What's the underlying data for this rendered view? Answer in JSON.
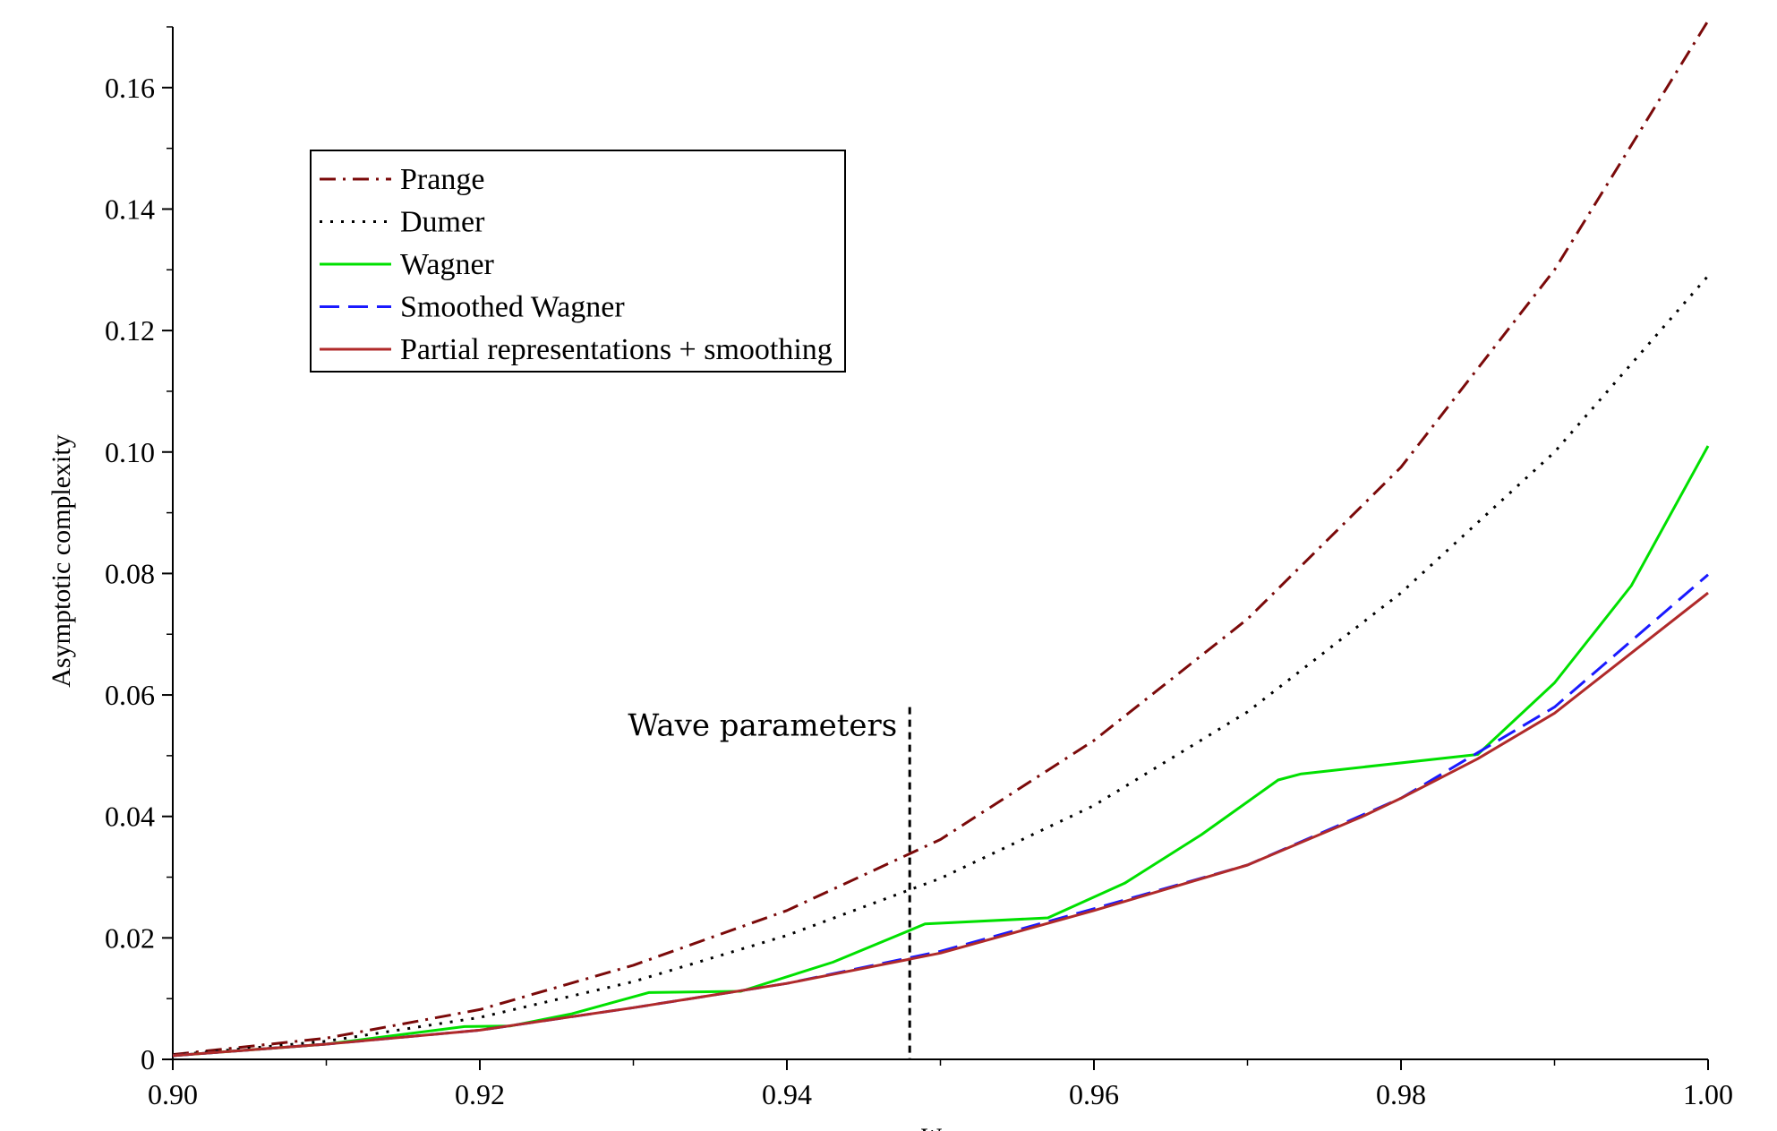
{
  "chart_data": {
    "type": "line",
    "title": "",
    "xlabel": "w",
    "ylabel": "Asymptotic complexity",
    "xlim": [
      0.9,
      1.0
    ],
    "ylim": [
      0,
      0.17
    ],
    "x_ticks": [
      0.9,
      0.92,
      0.94,
      0.96,
      0.98,
      1.0
    ],
    "x_tick_labels": [
      "0.90",
      "0.92",
      "0.94",
      "0.96",
      "0.98",
      "1.00"
    ],
    "y_ticks": [
      0,
      0.02,
      0.04,
      0.06,
      0.08,
      0.1,
      0.12,
      0.14,
      0.16
    ],
    "y_tick_labels": [
      "0",
      "0.02",
      "0.04",
      "0.06",
      "0.08",
      "0.10",
      "0.12",
      "0.14",
      "0.16"
    ],
    "grid": false,
    "legend_position": "top-left",
    "annotations": [
      {
        "text": "Wave parameters",
        "x": 0.948,
        "y_top": 0.058,
        "style": "vertical-dashed-line"
      }
    ],
    "series": [
      {
        "name": "Prange",
        "color": "#7b0a0a",
        "dash": "dashdot",
        "x": [
          0.9,
          0.91,
          0.92,
          0.93,
          0.94,
          0.95,
          0.96,
          0.97,
          0.98,
          0.99,
          1.0
        ],
        "y": [
          0.0008,
          0.0035,
          0.0082,
          0.0155,
          0.0245,
          0.0362,
          0.0525,
          0.0725,
          0.0975,
          0.13,
          0.171
        ]
      },
      {
        "name": "Dumer",
        "color": "#000000",
        "dash": "dotted",
        "x": [
          0.9,
          0.91,
          0.92,
          0.93,
          0.94,
          0.95,
          0.96,
          0.97,
          0.98,
          0.99,
          1.0
        ],
        "y": [
          0.0007,
          0.003,
          0.0069,
          0.0128,
          0.0204,
          0.0298,
          0.0418,
          0.0572,
          0.0768,
          0.1,
          0.129
        ]
      },
      {
        "name": "Wagner",
        "color": "#00e000",
        "dash": "solid",
        "x": [
          0.9,
          0.91,
          0.919,
          0.922,
          0.926,
          0.931,
          0.937,
          0.943,
          0.949,
          0.957,
          0.962,
          0.967,
          0.972,
          0.9735,
          0.985,
          0.99,
          0.995,
          1.0
        ],
        "y": [
          0.0006,
          0.0025,
          0.0054,
          0.0055,
          0.0075,
          0.011,
          0.0112,
          0.016,
          0.0223,
          0.0233,
          0.029,
          0.037,
          0.046,
          0.047,
          0.0502,
          0.062,
          0.078,
          0.101
        ]
      },
      {
        "name": "Smoothed Wagner",
        "color": "#1a1aff",
        "dash": "dashed",
        "x": [
          0.9,
          0.91,
          0.92,
          0.93,
          0.94,
          0.95,
          0.96,
          0.97,
          0.98,
          0.99,
          1.0
        ],
        "y": [
          0.0006,
          0.0025,
          0.0048,
          0.0085,
          0.0125,
          0.0178,
          0.0248,
          0.032,
          0.043,
          0.058,
          0.0798
        ]
      },
      {
        "name": "Partial representations + smoothing",
        "color": "#b02a2a",
        "dash": "solid",
        "x": [
          0.9,
          0.91,
          0.92,
          0.93,
          0.94,
          0.95,
          0.96,
          0.97,
          0.9775,
          0.98,
          0.985,
          0.99,
          1.0
        ],
        "y": [
          0.0006,
          0.0025,
          0.0048,
          0.0085,
          0.0125,
          0.0175,
          0.0245,
          0.032,
          0.04,
          0.043,
          0.0495,
          0.057,
          0.0768
        ]
      }
    ]
  }
}
